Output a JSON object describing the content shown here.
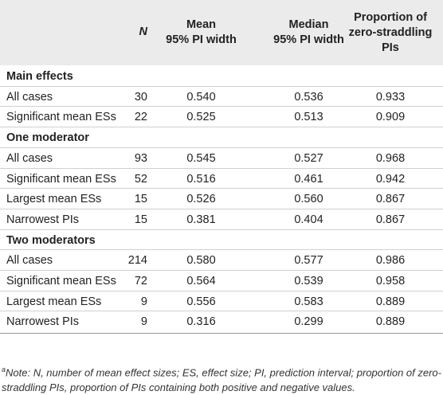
{
  "table": {
    "header": [
      [
        "N"
      ],
      [
        "Mean",
        "95% PI width"
      ],
      [
        "Median",
        "95% PI width"
      ],
      [
        "Proportion of",
        "zero-straddling",
        "PIs"
      ]
    ],
    "sections": [
      {
        "title": "Main effects",
        "rows": [
          [
            "All cases",
            "30",
            "0.540",
            "0.536",
            "0.933"
          ],
          [
            "Significant mean ESs",
            "22",
            "0.525",
            "0.513",
            "0.909"
          ]
        ]
      },
      {
        "title": "One moderator",
        "rows": [
          [
            "All cases",
            "93",
            "0.545",
            "0.527",
            "0.968"
          ],
          [
            "Significant mean ESs",
            "52",
            "0.516",
            "0.461",
            "0.942"
          ],
          [
            "Largest mean ESs",
            "15",
            "0.526",
            "0.560",
            "0.867"
          ],
          [
            "Narrowest PIs",
            "15",
            "0.381",
            "0.404",
            "0.867"
          ]
        ]
      },
      {
        "title": "Two moderators",
        "rows": [
          [
            "All cases",
            "214",
            "0.580",
            "0.577",
            "0.986"
          ],
          [
            "Significant mean ESs",
            "72",
            "0.564",
            "0.539",
            "0.958"
          ],
          [
            "Largest mean ESs",
            "9",
            "0.556",
            "0.583",
            "0.889"
          ],
          [
            "Narrowest PIs",
            "9",
            "0.316",
            "0.299",
            "0.889"
          ]
        ]
      }
    ]
  },
  "footnote": {
    "marker": "a",
    "text": "Note: N, number of mean effect sizes; ES, effect size; PI, prediction interval; proportion of zero-straddling PIs, proportion of PIs containing both positive and negative values."
  }
}
